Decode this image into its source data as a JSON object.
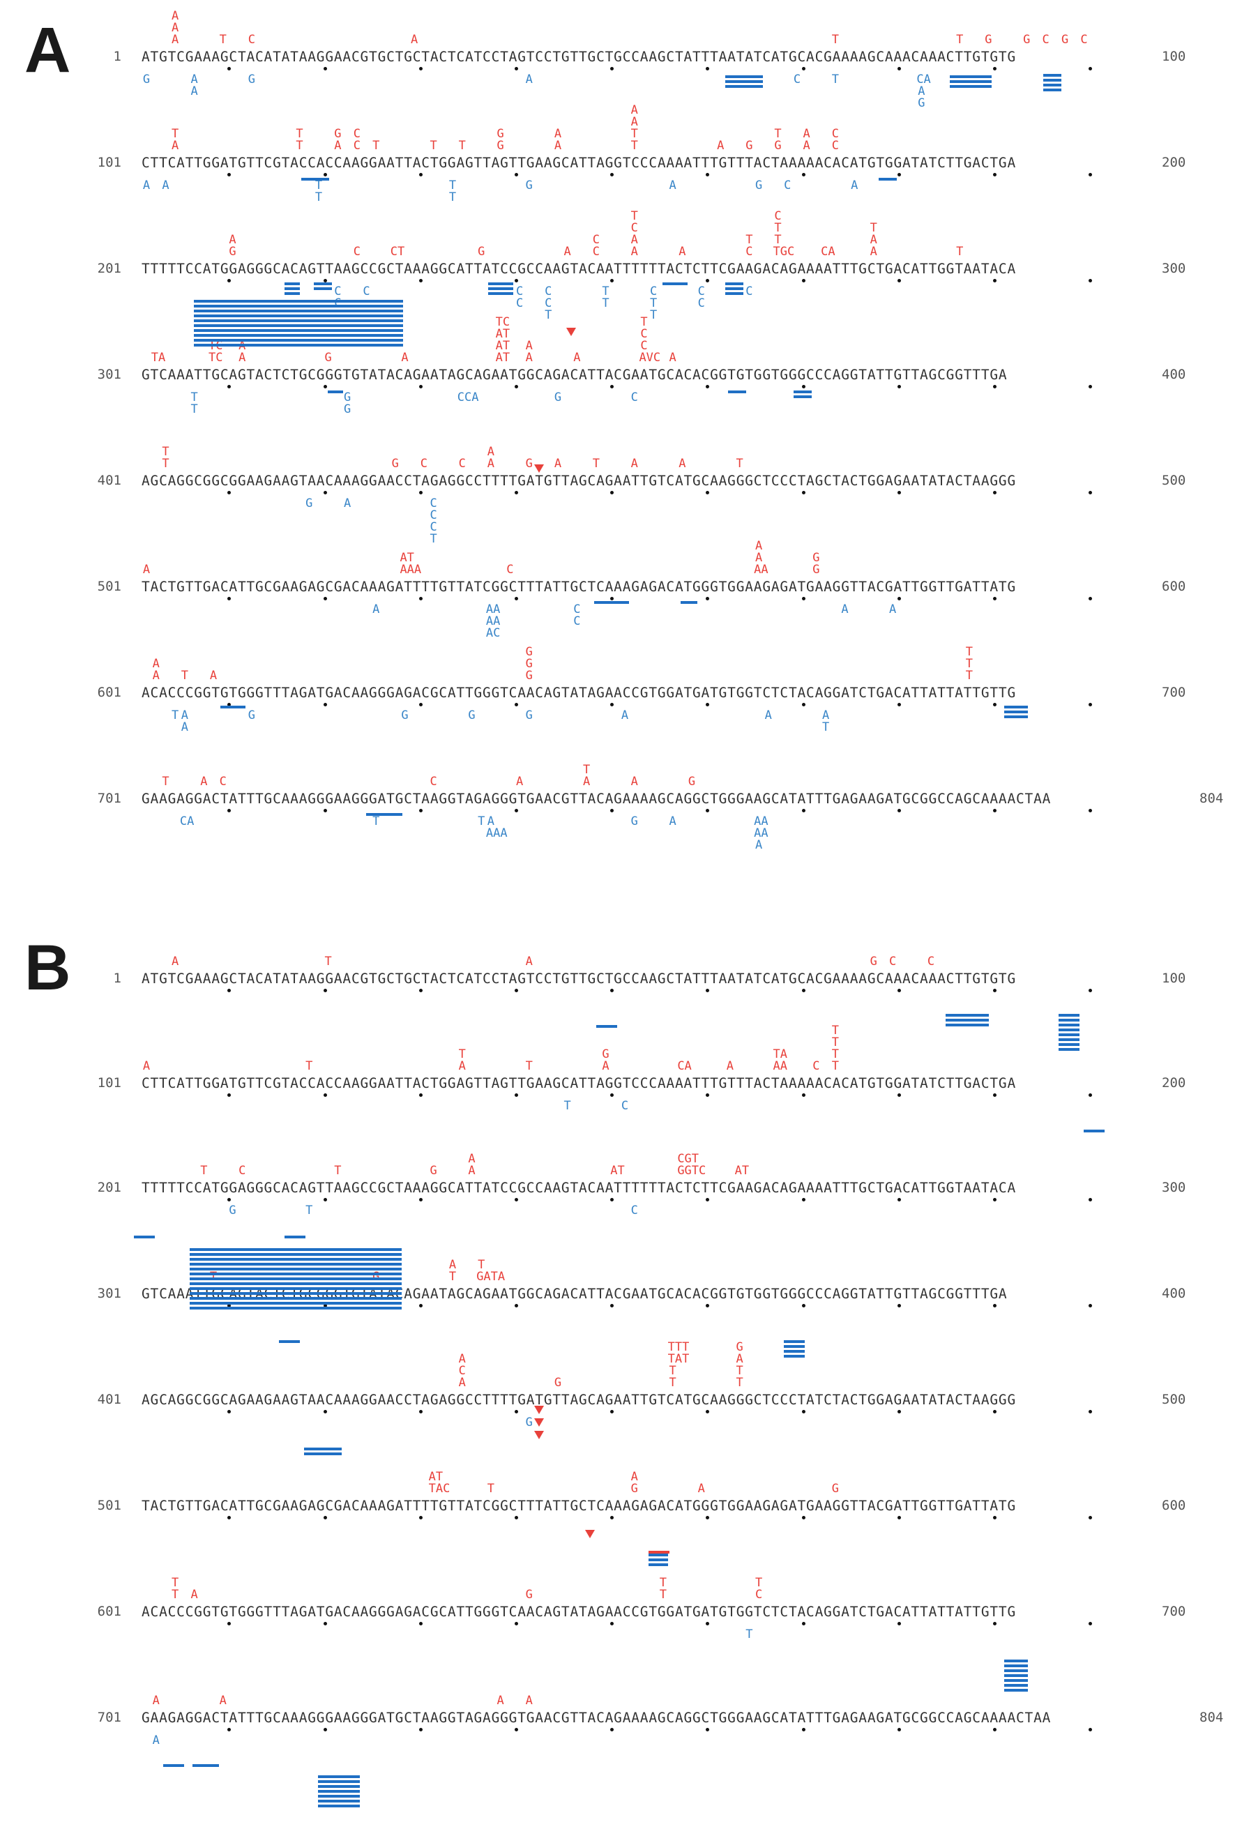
{
  "panels": [
    {
      "label": "A"
    },
    {
      "label": "B"
    }
  ],
  "sequence_rows": [
    {
      "start": "1",
      "end": "100",
      "seq": "ATGTCGAAAGCTACATATAAGGAACGTGCTGCTACTCATCCTAGTCCTGTTGCTGCCAAGCTATTTAATATCATGCACGAAAAGCAAACAAACTTGTGTG"
    },
    {
      "start": "101",
      "end": "200",
      "seq": "CTTCATTGGATGTTCGTACCACCAAGGAATTACTGGAGTTAGTTGAAGCATTAGGTCCCAAAATTTGTTTACTAAAAACACATGTGGATATCTTGACTGA"
    },
    {
      "start": "201",
      "end": "300",
      "seq": "TTTTTCCATGGAGGGCACAGTTAAGCCGCTAAAGGCATTATCCGCCAAGTACAATTTTTTACTCTTCGAAGACAGAAAATTTGCTGACATTGGTAATACA"
    },
    {
      "start": "301",
      "end": "400",
      "seq": "GTCAAATTGCAGTACTCTGCGGGTGTATACAGAATAGCAGAATGGCAGACATTACGAATGCACACGGTGTGGTGGGCCCAGGTATTGTTAGCGGTTTGA"
    },
    {
      "start": "401",
      "end": "500",
      "seq": "AGCAGGCGGCGGAAGAAGTAACAAAGGAACCTAGAGGCCTTTTGATGTTAGCAGAATTGTCATGCAAGGGCTCCCTAGCTACTGGAGAATATACTAAGGG"
    },
    {
      "start": "501",
      "end": "600",
      "seq": "TACTGTTGACATTGCGAAGAGCGACAAAGATTTTGTTATCGGCTTTATTGCTCAAAGAGACATGGGTGGAAGAGATGAAGGTTACGATTGGTTGATTATG"
    },
    {
      "start": "601",
      "end": "700",
      "seq": "ACACCCGGTGTGGGTTTAGATGACAAGGGAGACGCATTGGGTCAACAGTATAGAACCGTGGATGATGTGGTCTCTACAGGATCTGACATTATTATTGTTG"
    },
    {
      "start": "701",
      "end": "804",
      "seq": "GAAGAGGACTATTTGCAAAGGGAAGGGATGCTAAGGTAGAGGGTGAACGTTACAGAAAAGCAGGCTGGGAAGCATATTTGAGAAGATGCGGCCAGCAAAACTAA"
    },
    {
      "start": "1",
      "end": "100",
      "seq": "ATGTCGAAAGCTACATATAAGGAACGTGCTGCTACTCATCCTAGTCCTGTTGCTGCCAAGCTATTTAATATCATGCACGAAAAGCAAACAAACTTGTGTG"
    },
    {
      "start": "101",
      "end": "200",
      "seq": "CTTCATTGGATGTTCGTACCACCAAGGAATTACTGGAGTTAGTTGAAGCATTAGGTCCCAAAATTTGTTTACTAAAAACACATGTGGATATCTTGACTGA"
    },
    {
      "start": "201",
      "end": "300",
      "seq": "TTTTTCCATGGAGGGCACAGTTAAGCCGCTAAAGGCATTATCCGCCAAGTACAATTTTTTACTCTTCGAAGACAGAAAATTTGCTGACATTGGTAATACA"
    },
    {
      "start": "301",
      "end": "400",
      "seq": "GTCAAATTGCAGTACTCTGCGGGTGTATACAGAATAGCAGAATGGCAGACATTACGAATGCACACGGTGTGGTGGGCCCAGGTATTGTTAGCGGTTTGA"
    },
    {
      "start": "401",
      "end": "500",
      "seq": "AGCAGGCGGCAGAAGAAGTAACAAAGGAACCTAGAGGCCTTTTGATGTTAGCAGAATTGTCATGCAAGGGCTCCCTATCTACTGGAGAATATACTAAGGG"
    },
    {
      "start": "501",
      "end": "600",
      "seq": "TACTGTTGACATTGCGAAGAGCGACAAAGATTTTGTTATCGGCTTTATTGCTCAAAGAGACATGGGTGGAAGAGATGAAGGTTACGATTGGTTGATTATG"
    },
    {
      "start": "601",
      "end": "700",
      "seq": "ACACCCGGTGTGGGTTTAGATGACAAGGGAGACGCATTGGGTCAACAGTATAGAACCGTGGATGATGTGGTCTCTACAGGATCTGACATTATTATTGTTG"
    },
    {
      "start": "701",
      "end": "804",
      "seq": "GAAGAGGACTATTTGCAAAGGGAAGGGATGCTAAGGTAGAGGGTGAACGTTACAGAAAAGCAGGCTGGGAAGCATATTTGAGAAGATGCGGCCAGCAAAACTAA"
    }
  ],
  "mutations_above": [
    [
      "A\nA\nA",
      "",
      "T",
      "C",
      "",
      "A",
      "",
      "",
      "",
      "T",
      "T",
      "G",
      "G",
      "C",
      "G",
      "C",
      "",
      "",
      "",
      "",
      "",
      "",
      "",
      "",
      "",
      "",
      ""
    ],
    [
      "T\nA",
      "T\nT",
      "G\nA",
      "C\nC",
      "T",
      "T",
      "T",
      "G\nG",
      "A\nA",
      "A\nA\nT\nT",
      "A",
      "G",
      "T\nG",
      "A\nA",
      "C\nC"
    ],
    [
      "A\nG",
      "",
      "C",
      "CT",
      "G",
      "A",
      "C\nC",
      "T\nC\nA\nA",
      "A",
      "T\nC",
      "C\nT\nT\nTGC",
      "CA",
      "T\nA\nA",
      "T"
    ],
    [
      "TA",
      "TC\nTC",
      "A\nA",
      "G",
      "A",
      "TC\nAT\nAT\nAT",
      "A\nA",
      "A",
      "T\nC\nC\nAVC",
      "A"
    ],
    [
      "T\nT",
      "G",
      "C",
      "C",
      "A\nA",
      "G",
      "A",
      "T",
      "A",
      "A",
      "T"
    ],
    [
      "A",
      "AT\nAAA",
      "C",
      "A\nA\nAA",
      "G\nG"
    ],
    [
      "A\nA",
      "T",
      "A",
      "G\nG\nG",
      "T\nT\nT"
    ],
    [
      "T",
      "A",
      "C",
      "C",
      "A",
      "T\nA",
      "A",
      "G"
    ],
    [
      "A",
      "T",
      "A",
      "G",
      "C",
      "C"
    ],
    [
      "A",
      "T",
      "T\nA",
      "T",
      "G\nA",
      "CA",
      "A",
      "TA\nAA",
      "C",
      "T\nT\nT\nT"
    ],
    [
      "T",
      "C",
      "T",
      "G",
      "A\nA",
      "AT",
      "CGT\nGGTC",
      "AT"
    ],
    [
      "T",
      "G",
      "A\nT",
      "T\nGATA"
    ],
    [
      "A\nC\nA",
      "G",
      "TTT\nTAT\nT\nT",
      "G\nA\nT\nT"
    ],
    [
      "AT\nTAC",
      "T",
      "A\nG",
      "A",
      "G"
    ],
    [
      "T\nT",
      "A",
      "G",
      "T\nT",
      "T\nC"
    ],
    [
      "A",
      "A",
      "A",
      "A"
    ]
  ],
  "mutations_below": [
    [
      "G",
      "A\nA",
      "G",
      "A",
      "C",
      "T",
      "CA\nA\nG"
    ],
    [
      "A",
      "A",
      "T\nT",
      "T\nT",
      "G",
      "A",
      "G",
      "C",
      "A"
    ],
    [
      "C\nC",
      "C",
      "C\nC",
      "C\nC\nT",
      "T\nT",
      "C\nT\nT",
      "C\nC",
      "C"
    ],
    [
      "T\nT",
      "G\nG",
      "CCA",
      "G",
      "C"
    ],
    [
      "G",
      "A",
      "C\nC\nC\nT"
    ],
    [
      "A",
      "AA\nAA\nAC",
      "C\nC",
      "A",
      "A"
    ],
    [
      "T",
      "A\nA",
      "G",
      "G",
      "G",
      "G",
      "A",
      "A",
      "A\nT"
    ],
    [
      "CA",
      "T",
      "T",
      "G",
      "A",
      "AA\nAA\nA",
      "A\nAAA"
    ],
    [],
    [
      "T",
      "C"
    ],
    [
      "G",
      "T",
      "C"
    ],
    [],
    [
      "G"
    ],
    [],
    [
      "T"
    ],
    [
      "A"
    ]
  ],
  "colors": {
    "insertion": "#e8413b",
    "deletion": "#3a86c8",
    "bar": "#1f6fc4",
    "sequence": "#333333"
  }
}
